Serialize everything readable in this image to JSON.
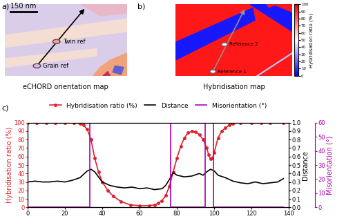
{
  "panels": {
    "a": {
      "label": "a)",
      "caption": "eCHORD orientation map",
      "scale_bar": "150 nm",
      "points": [
        "Twin ref",
        "Grain ref"
      ]
    },
    "b": {
      "label": "b)",
      "caption": "Hybridisation map",
      "points": [
        "Reference 1",
        "Reference 2"
      ],
      "colorbar": {
        "label": "Hybridisation ratio (%)",
        "range": [
          0,
          100
        ],
        "ticks": [
          0,
          10,
          20,
          30,
          40,
          50,
          60,
          70,
          80,
          90,
          100
        ]
      }
    },
    "c": {
      "label": "c)"
    }
  },
  "chart_data": {
    "type": "line",
    "xlim": [
      0,
      140
    ],
    "xticks": [
      0,
      20,
      40,
      60,
      80,
      100,
      120,
      140
    ],
    "ylim": [
      0,
      100
    ],
    "yticks": [
      0,
      10,
      20,
      30,
      40,
      50,
      60,
      70,
      80,
      90,
      100
    ],
    "ylabel": "Hybridisation ratio (%)",
    "y2lim": [
      0.0,
      1.0
    ],
    "y2ticks": [
      0.0,
      0.1,
      0.2,
      0.3,
      0.4,
      0.5,
      0.6,
      0.7,
      0.8,
      0.9,
      1.0
    ],
    "y2label": "Distance",
    "y3lim": [
      0,
      60
    ],
    "y3ticks": [
      0,
      10,
      20,
      30,
      40,
      50,
      60
    ],
    "y3label": "Misorientation (°)",
    "legend": "upper center",
    "series": [
      {
        "name": "Hybridisation ratio (%)",
        "color": "#e0202a",
        "marker": "o",
        "axis": "y",
        "x": [
          0,
          5,
          10,
          15,
          20,
          25,
          28,
          30,
          32,
          34,
          36,
          38,
          40,
          43,
          46,
          50,
          55,
          60,
          65,
          68,
          70,
          72,
          74,
          76,
          78,
          80,
          82,
          84,
          86,
          88,
          90,
          92,
          94,
          96,
          97,
          98,
          99,
          100,
          102,
          104,
          106,
          108,
          110,
          114,
          120,
          125,
          130,
          137
        ],
        "values": [
          100,
          100,
          100,
          100,
          100,
          100,
          99,
          97,
          92,
          80,
          58,
          42,
          30,
          20,
          13,
          7,
          3,
          2,
          2,
          3,
          5,
          8,
          14,
          25,
          42,
          58,
          72,
          82,
          88,
          90,
          89,
          86,
          80,
          70,
          62,
          57,
          58,
          65,
          82,
          90,
          94,
          97,
          99,
          100,
          100,
          100,
          100,
          100
        ]
      },
      {
        "name": "Distance",
        "color": "#000000",
        "marker": "none",
        "axis": "y2",
        "x": [
          0,
          4,
          8,
          12,
          16,
          20,
          24,
          28,
          30,
          32,
          34,
          36,
          38,
          40,
          44,
          48,
          52,
          56,
          60,
          64,
          68,
          72,
          74,
          76,
          78,
          80,
          84,
          88,
          92,
          94,
          96,
          98,
          100,
          102,
          106,
          110,
          114,
          118,
          122,
          126,
          130,
          134,
          137
        ],
        "values": [
          0.3,
          0.31,
          0.3,
          0.3,
          0.31,
          0.3,
          0.32,
          0.35,
          0.39,
          0.43,
          0.45,
          0.42,
          0.36,
          0.3,
          0.26,
          0.24,
          0.23,
          0.24,
          0.22,
          0.23,
          0.21,
          0.22,
          0.26,
          0.33,
          0.41,
          0.38,
          0.36,
          0.37,
          0.4,
          0.38,
          0.42,
          0.45,
          0.43,
          0.38,
          0.35,
          0.31,
          0.29,
          0.28,
          0.3,
          0.28,
          0.29,
          0.3,
          0.34
        ]
      },
      {
        "name": "Misorientation (°)",
        "color": "#b000b0",
        "marker": "none",
        "axis": "y3",
        "x": [
          0,
          33.5,
          33.5,
          76.5,
          76.5,
          95,
          95,
          99.5,
          99.5,
          137
        ],
        "values": [
          0,
          0,
          60,
          60,
          0,
          0,
          60,
          60,
          0,
          0
        ]
      }
    ]
  }
}
